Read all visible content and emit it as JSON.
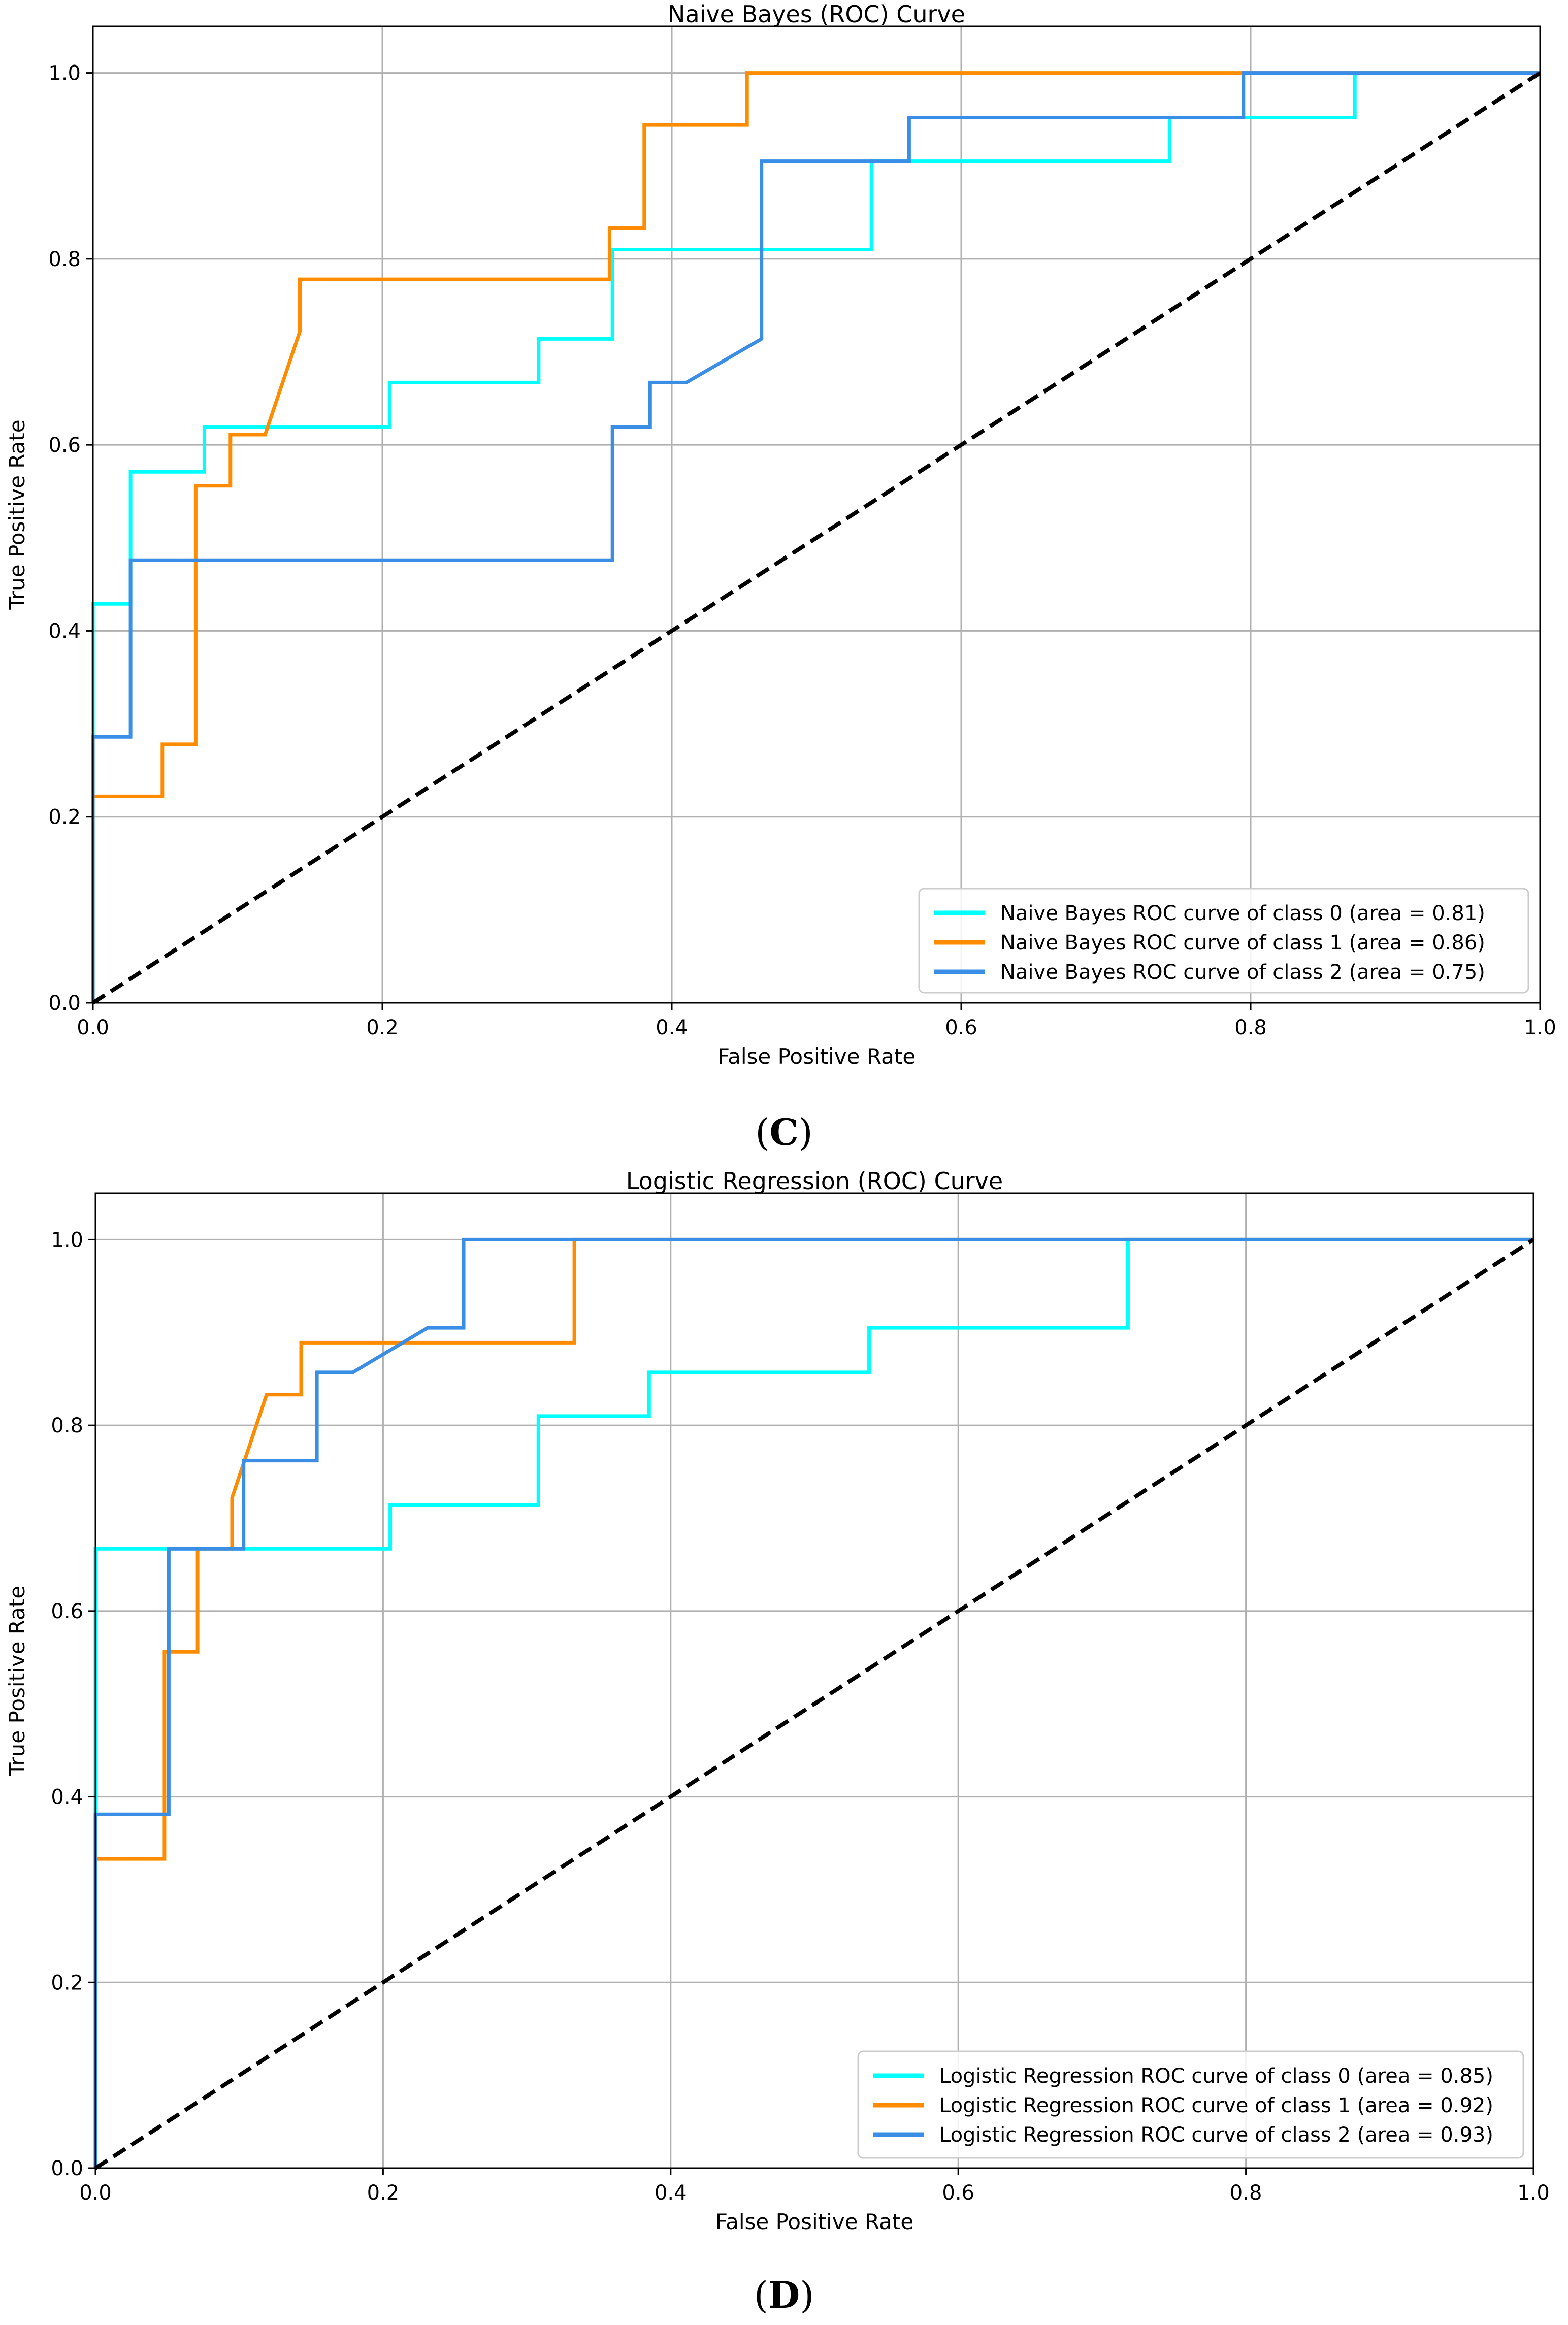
{
  "chart_data": [
    {
      "type": "line",
      "title": "Naive Bayes (ROC) Curve",
      "xlabel": "False Positive Rate",
      "ylabel": "True Positive Rate",
      "xlim": [
        0.0,
        1.0
      ],
      "ylim": [
        0.0,
        1.05
      ],
      "grid": true,
      "legend_position": "lower-right",
      "panel_label": "C",
      "xticks": [
        "0.0",
        "0.2",
        "0.4",
        "0.6",
        "0.8",
        "1.0"
      ],
      "yticks": [
        "0.0",
        "0.2",
        "0.4",
        "0.6",
        "0.8",
        "1.0"
      ],
      "reference_line": {
        "style": "dashed",
        "color": "#000000",
        "x": [
          0,
          1
        ],
        "y": [
          0,
          1
        ]
      },
      "series": [
        {
          "name": "Naive Bayes ROC curve of class 0 (area = 0.81)",
          "color": "#00ffff",
          "x": [
            0,
            0,
            0.026,
            0.026,
            0.077,
            0.077,
            0.205,
            0.205,
            0.308,
            0.308,
            0.359,
            0.359,
            0.538,
            0.538,
            0.564,
            0.744,
            0.744,
            0.872,
            0.872,
            1.0
          ],
          "y": [
            0,
            0.429,
            0.429,
            0.571,
            0.571,
            0.619,
            0.619,
            0.667,
            0.667,
            0.714,
            0.714,
            0.81,
            0.81,
            0.905,
            0.905,
            0.905,
            0.952,
            0.952,
            1.0,
            1.0
          ]
        },
        {
          "name": "Naive Bayes ROC curve of class 1 (area = 0.86)",
          "color": "#ff8c00",
          "x": [
            0,
            0,
            0.048,
            0.048,
            0.071,
            0.071,
            0.095,
            0.095,
            0.119,
            0.143,
            0.143,
            0.357,
            0.357,
            0.381,
            0.381,
            0.452,
            0.452,
            1.0
          ],
          "y": [
            0,
            0.222,
            0.222,
            0.278,
            0.278,
            0.556,
            0.556,
            0.611,
            0.611,
            0.722,
            0.778,
            0.778,
            0.833,
            0.833,
            0.944,
            0.944,
            1.0,
            1.0
          ]
        },
        {
          "name": "Naive Bayes ROC curve of class 2 (area = 0.75)",
          "color": "#3a8ee6",
          "x": [
            0,
            0,
            0.026,
            0.026,
            0.359,
            0.359,
            0.385,
            0.385,
            0.41,
            0.462,
            0.462,
            0.564,
            0.564,
            0.795,
            0.795,
            1.0
          ],
          "y": [
            0,
            0.286,
            0.286,
            0.476,
            0.476,
            0.619,
            0.619,
            0.667,
            0.667,
            0.714,
            0.905,
            0.905,
            0.952,
            0.952,
            1.0,
            1.0
          ]
        }
      ]
    },
    {
      "type": "line",
      "title": "Logistic Regression (ROC) Curve",
      "xlabel": "False Positive Rate",
      "ylabel": "True Positive Rate",
      "xlim": [
        0.0,
        1.0
      ],
      "ylim": [
        0.0,
        1.05
      ],
      "grid": true,
      "legend_position": "lower-right",
      "panel_label": "D",
      "xticks": [
        "0.0",
        "0.2",
        "0.4",
        "0.6",
        "0.8",
        "1.0"
      ],
      "yticks": [
        "0.0",
        "0.2",
        "0.4",
        "0.6",
        "0.8",
        "1.0"
      ],
      "reference_line": {
        "style": "dashed",
        "color": "#000000",
        "x": [
          0,
          1
        ],
        "y": [
          0,
          1
        ]
      },
      "series": [
        {
          "name": "Logistic Regression ROC curve of class 0 (area = 0.85)",
          "color": "#00ffff",
          "x": [
            0,
            0,
            0.205,
            0.205,
            0.308,
            0.308,
            0.385,
            0.385,
            0.538,
            0.538,
            0.718,
            0.718,
            1.0
          ],
          "y": [
            0,
            0.667,
            0.667,
            0.714,
            0.714,
            0.81,
            0.81,
            0.857,
            0.857,
            0.905,
            0.905,
            1.0,
            1.0
          ]
        },
        {
          "name": "Logistic Regression ROC curve of class 1 (area = 0.92)",
          "color": "#ff8c00",
          "x": [
            0,
            0,
            0.048,
            0.048,
            0.071,
            0.071,
            0.095,
            0.095,
            0.119,
            0.143,
            0.143,
            0.333,
            0.333,
            1.0
          ],
          "y": [
            0,
            0.333,
            0.333,
            0.556,
            0.556,
            0.667,
            0.667,
            0.722,
            0.833,
            0.833,
            0.889,
            0.889,
            1.0,
            1.0
          ]
        },
        {
          "name": "Logistic Regression ROC curve of class 2 (area = 0.93)",
          "color": "#3a8ee6",
          "x": [
            0,
            0,
            0.051,
            0.051,
            0.103,
            0.103,
            0.154,
            0.154,
            0.179,
            0.231,
            0.256,
            0.256,
            1.0
          ],
          "y": [
            0,
            0.381,
            0.381,
            0.667,
            0.667,
            0.762,
            0.762,
            0.857,
            0.857,
            0.905,
            0.905,
            1.0,
            1.0
          ]
        }
      ]
    }
  ]
}
